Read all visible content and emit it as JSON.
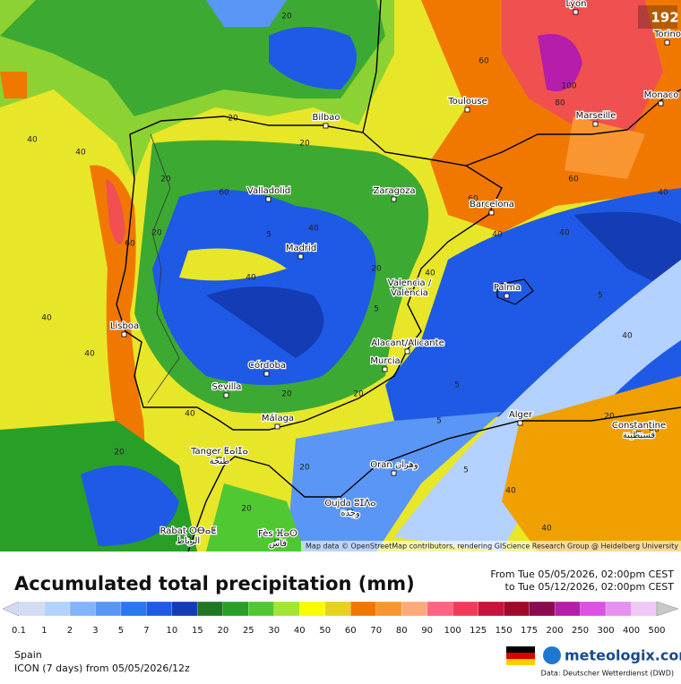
{
  "map": {
    "badge": "192",
    "cities": [
      {
        "label": "Lyon"
      },
      {
        "label": "Torino"
      },
      {
        "label": "Monaco"
      },
      {
        "label": "Marseille"
      },
      {
        "label": "Toulouse"
      },
      {
        "label": "Bilbao"
      },
      {
        "label": "Valladolid"
      },
      {
        "label": "Zaragoza"
      },
      {
        "label": "Barcelona"
      },
      {
        "label": "Madrid"
      },
      {
        "label": "Valencia /",
        "label2": "València"
      },
      {
        "label": "Palma"
      },
      {
        "label": "Lisboa"
      },
      {
        "label": "Alacant/Alicante"
      },
      {
        "label": "Murcia"
      },
      {
        "label": "Córdoba"
      },
      {
        "label": "Sevilla"
      },
      {
        "label": "Málaga"
      },
      {
        "label": "Alger"
      },
      {
        "label": "Constantine",
        "label2": "قسنطينة"
      },
      {
        "label": "Tanger ⵟⴰⵏⵊⴰ",
        "label2": "طنجة"
      },
      {
        "label": "Oran وهران"
      },
      {
        "label": "Oujda ⵓⵊⴷⴰ",
        "label2": "وجدة"
      },
      {
        "label": "Rabat ⵔⴱⴰⵟ",
        "label2": "الرباط"
      },
      {
        "label": "Fès ⴼⴰⵙ",
        "label2": "فاس"
      }
    ],
    "contour_labels": [
      "20",
      "40",
      "40",
      "40",
      "40",
      "60",
      "60",
      "20",
      "20",
      "20",
      "20",
      "5",
      "40",
      "60",
      "40",
      "20",
      "40",
      "5",
      "5",
      "40",
      "20",
      "20",
      "40",
      "20",
      "5",
      "40",
      "40",
      "60",
      "80",
      "100",
      "20",
      "20",
      "40",
      "40",
      "40",
      "60",
      "40",
      "20",
      "5",
      "5"
    ],
    "attribution": "Map data © OpenStreetMap contributors, rendering GIScience Research Group @ Heidelberg University"
  },
  "header": {
    "title": "Accumulated total precipitation (mm)",
    "from": "From Tue 05/05/2026, 02:00pm CEST",
    "to": "to Tue 05/12/2026, 02:00pm CEST"
  },
  "legend": {
    "labels": [
      0.1,
      1,
      2,
      3,
      5,
      7,
      10,
      15,
      20,
      25,
      30,
      40,
      50,
      60,
      70,
      80,
      90,
      100,
      125,
      150,
      175,
      200,
      250,
      300,
      400,
      500
    ],
    "colors": [
      "#d4dcf4",
      "#b4d2ff",
      "#82b4ff",
      "#5a96f5",
      "#2878f0",
      "#1e5ae6",
      "#143cb4",
      "#1e7820",
      "#28a028",
      "#50c832",
      "#a0e632",
      "#fafa00",
      "#e6d21e",
      "#f07800",
      "#fa9632",
      "#ffaa78",
      "#ff6482",
      "#f03c5a",
      "#c8143c",
      "#a00a28",
      "#8c0a50",
      "#b41eaa",
      "#dc50e6",
      "#e690f0",
      "#f0c8f8",
      "#f8ecfa"
    ]
  },
  "footer": {
    "region": "Spain",
    "model": "ICON (7 days)  from  05/05/2026/12z",
    "brand": "meteologix.com",
    "source": "Data: Deutscher Wetterdienst (DWD)"
  }
}
